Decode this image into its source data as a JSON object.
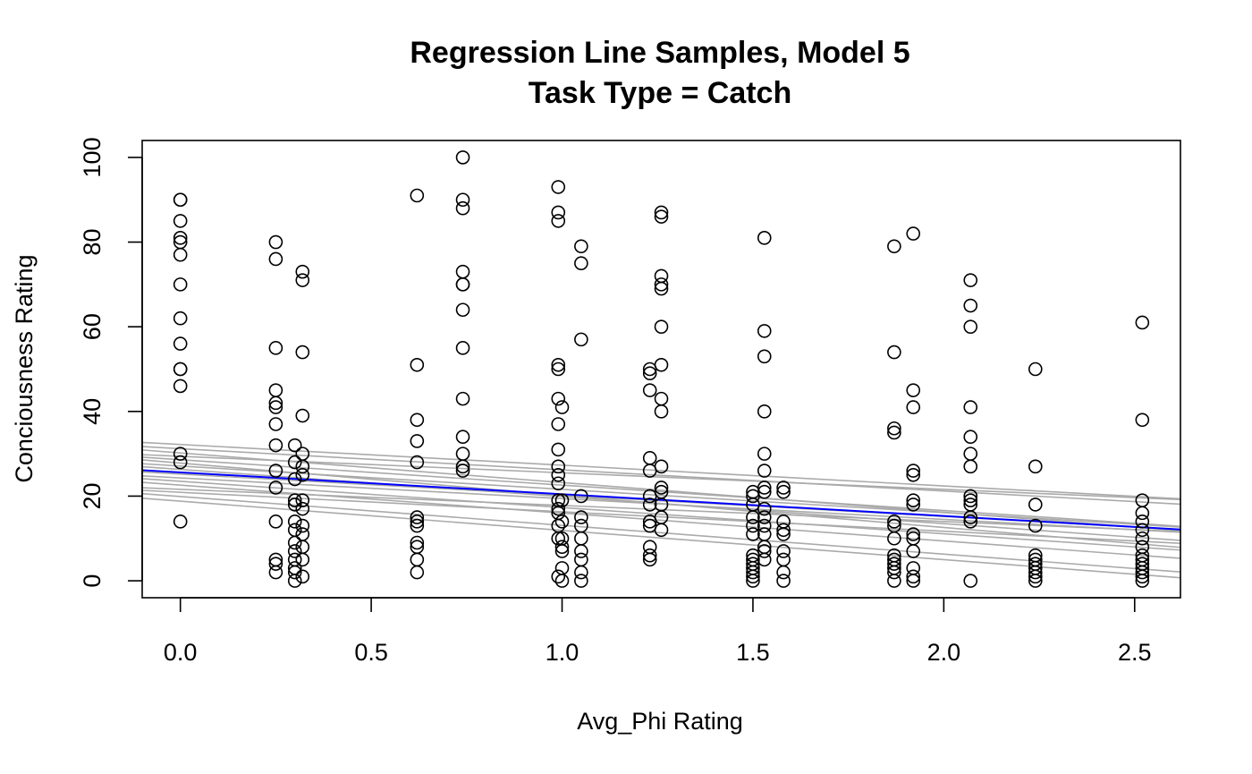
{
  "chart_data": {
    "type": "scatter",
    "title": "Regression Line Samples, Model 5",
    "subtitle": "Task Type = Catch",
    "xlabel": "Avg_Phi Rating",
    "ylabel": "Conciousness Rating",
    "xlim": [
      -0.1,
      2.62
    ],
    "ylim": [
      -4,
      104
    ],
    "x_ticks": [
      0.0,
      0.5,
      1.0,
      1.5,
      2.0,
      2.5
    ],
    "x_tick_labels": [
      "0.0",
      "0.5",
      "1.0",
      "1.5",
      "2.0",
      "2.5"
    ],
    "y_ticks": [
      0,
      20,
      40,
      60,
      80,
      100
    ],
    "y_tick_labels": [
      "0",
      "20",
      "40",
      "60",
      "80",
      "100"
    ],
    "grid": false,
    "colors": {
      "points": "#000000",
      "samples": "#aaaaaa",
      "mean_line": "#0000ff"
    },
    "points": [
      {
        "x": 0.0,
        "ys": [
          90,
          90,
          85,
          81,
          80,
          77,
          70,
          62,
          56,
          50,
          50,
          46,
          30,
          28,
          14
        ]
      },
      {
        "x": 0.25,
        "ys": [
          80,
          76,
          55,
          45,
          42,
          41,
          37,
          32,
          26,
          22,
          14,
          5,
          4,
          2
        ]
      },
      {
        "x": 0.3,
        "ys": [
          32,
          28,
          24,
          19,
          18,
          14,
          12,
          9,
          7,
          5,
          3,
          2,
          0
        ]
      },
      {
        "x": 0.32,
        "ys": [
          73,
          71,
          54,
          39,
          30,
          27,
          25,
          19,
          17,
          13,
          11,
          8,
          5,
          1
        ]
      },
      {
        "x": 0.62,
        "ys": [
          91,
          51,
          38,
          33,
          28,
          15,
          14,
          13,
          9,
          8,
          5,
          2
        ]
      },
      {
        "x": 0.74,
        "ys": [
          100,
          90,
          88,
          73,
          70,
          70,
          64,
          55,
          43,
          34,
          30,
          27,
          26
        ]
      },
      {
        "x": 0.99,
        "ys": [
          93,
          87,
          85,
          51,
          50,
          43,
          37,
          31,
          27,
          25,
          23,
          19,
          17,
          16,
          13,
          10,
          1
        ]
      },
      {
        "x": 1.0,
        "ys": [
          41,
          19,
          14,
          10,
          8,
          7,
          3,
          0
        ]
      },
      {
        "x": 1.05,
        "ys": [
          79,
          75,
          57,
          20,
          15,
          13,
          10,
          7,
          5,
          2,
          0
        ]
      },
      {
        "x": 1.23,
        "ys": [
          50,
          49,
          45,
          29,
          26,
          20,
          18,
          14,
          13,
          8,
          6,
          5
        ]
      },
      {
        "x": 1.26,
        "ys": [
          87,
          86,
          72,
          70,
          69,
          60,
          51,
          43,
          40,
          27,
          22,
          21,
          18,
          15,
          12
        ]
      },
      {
        "x": 1.5,
        "ys": [
          21,
          20,
          18,
          15,
          13,
          11,
          6,
          5,
          4,
          3,
          2,
          1,
          0
        ]
      },
      {
        "x": 1.53,
        "ys": [
          81,
          59,
          53,
          40,
          30,
          26,
          22,
          21,
          17,
          15,
          13,
          11,
          8,
          7,
          5
        ]
      },
      {
        "x": 1.58,
        "ys": [
          22,
          21,
          14,
          12,
          11,
          7,
          5,
          2,
          0
        ]
      },
      {
        "x": 1.87,
        "ys": [
          79,
          54,
          36,
          35,
          14,
          13,
          10,
          6,
          5,
          4,
          3,
          2,
          0
        ]
      },
      {
        "x": 1.92,
        "ys": [
          82,
          45,
          41,
          26,
          25,
          19,
          18,
          11,
          10,
          7,
          3,
          1,
          0
        ]
      },
      {
        "x": 2.07,
        "ys": [
          71,
          65,
          60,
          41,
          34,
          30,
          27,
          20,
          19,
          18,
          15,
          14,
          0
        ]
      },
      {
        "x": 2.24,
        "ys": [
          50,
          27,
          18,
          13,
          6,
          5,
          4,
          3,
          2,
          1,
          0
        ]
      },
      {
        "x": 2.52,
        "ys": [
          61,
          38,
          19,
          16,
          14,
          12,
          10,
          8,
          6,
          5,
          4,
          3,
          2,
          1,
          0
        ]
      }
    ],
    "mean_line": {
      "intercept": 25.6,
      "slope": -5.15
    },
    "sample_lines": [
      {
        "intercept": 32.2,
        "slope": -4.9
      },
      {
        "intercept": 31.2,
        "slope": -5.0
      },
      {
        "intercept": 30.2,
        "slope": -7.0
      },
      {
        "intercept": 29.4,
        "slope": -3.9
      },
      {
        "intercept": 28.6,
        "slope": -6.0
      },
      {
        "intercept": 27.8,
        "slope": -7.6
      },
      {
        "intercept": 27.1,
        "slope": -5.5
      },
      {
        "intercept": 26.3,
        "slope": -6.4
      },
      {
        "intercept": 25.2,
        "slope": -5.0
      },
      {
        "intercept": 24.3,
        "slope": -4.9
      },
      {
        "intercept": 23.5,
        "slope": -6.2
      },
      {
        "intercept": 22.6,
        "slope": -6.6
      },
      {
        "intercept": 21.6,
        "slope": -3.8
      },
      {
        "intercept": 20.9,
        "slope": -4.6
      },
      {
        "intercept": 19.9,
        "slope": -6.8
      },
      {
        "intercept": 18.8,
        "slope": -6.9
      }
    ]
  }
}
